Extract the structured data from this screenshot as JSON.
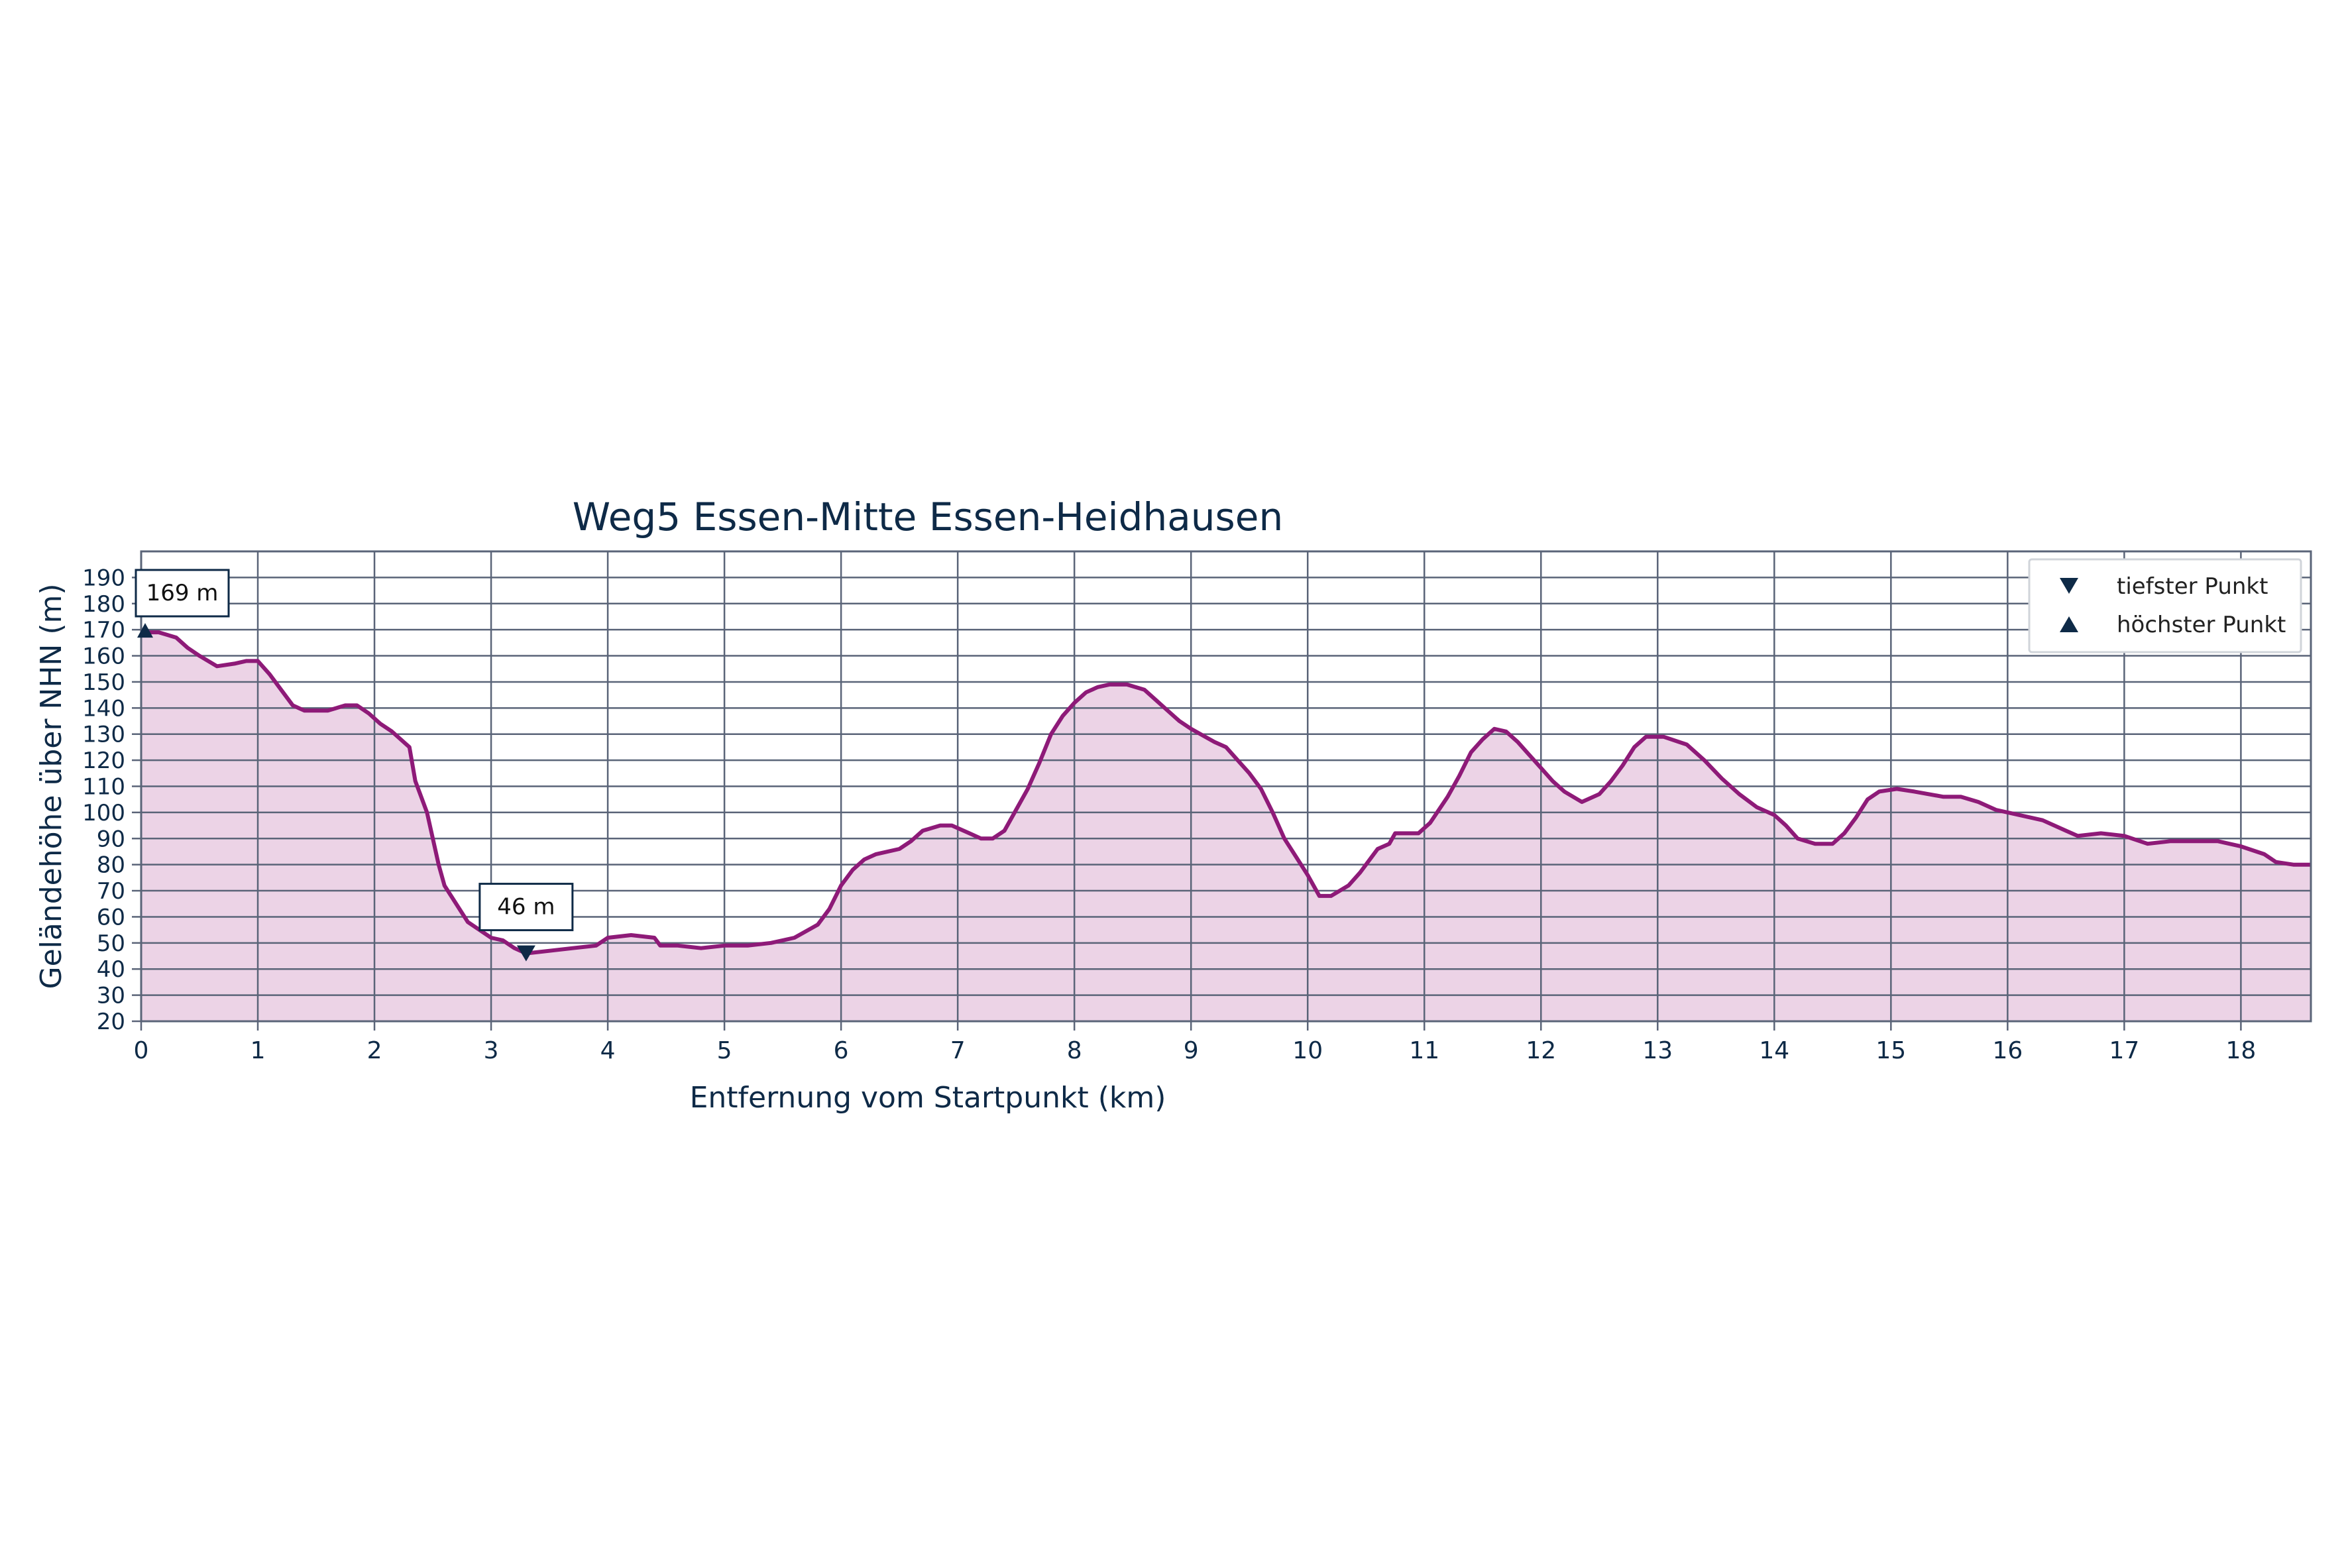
{
  "colors": {
    "line": "#8e1a78",
    "fill": "#ecd3e6",
    "grid": "#5a6478",
    "text": "#0e2a47",
    "marker": "#0e2a47",
    "background": "#ffffff"
  },
  "chart_data": {
    "type": "area",
    "title": "Weg5 Essen-Mitte Essen-Heidhausen",
    "xlabel": "Entfernung vom Startpunkt (km)",
    "ylabel": "Geländehöhe über NHN (m)",
    "xlim": [
      0,
      18.6
    ],
    "ylim": [
      20,
      200
    ],
    "x_ticks": [
      0,
      1,
      2,
      3,
      4,
      5,
      6,
      7,
      8,
      9,
      10,
      11,
      12,
      13,
      14,
      15,
      16,
      17,
      18
    ],
    "y_ticks": [
      20,
      30,
      40,
      50,
      60,
      70,
      80,
      90,
      100,
      110,
      120,
      130,
      140,
      150,
      160,
      170,
      180,
      190
    ],
    "grid": true,
    "legend_position": "top-right",
    "legend": [
      {
        "symbol": "down-triangle",
        "label": "tiefster Punkt"
      },
      {
        "symbol": "up-triangle",
        "label": "höchster Punkt"
      }
    ],
    "annotations": [
      {
        "label": "169 m",
        "x": 0.0,
        "y": 169,
        "type": "max"
      },
      {
        "label": "46 m",
        "x": 3.3,
        "y": 46,
        "type": "min"
      }
    ],
    "series": [
      {
        "points": [
          [
            0.0,
            169
          ],
          [
            0.15,
            169
          ],
          [
            0.3,
            167
          ],
          [
            0.4,
            163
          ],
          [
            0.5,
            160
          ],
          [
            0.65,
            156
          ],
          [
            0.8,
            157
          ],
          [
            0.9,
            158
          ],
          [
            1.0,
            158
          ],
          [
            1.1,
            153
          ],
          [
            1.2,
            147
          ],
          [
            1.3,
            141
          ],
          [
            1.4,
            139
          ],
          [
            1.6,
            139
          ],
          [
            1.75,
            141
          ],
          [
            1.85,
            141
          ],
          [
            1.95,
            138
          ],
          [
            2.05,
            134
          ],
          [
            2.15,
            131
          ],
          [
            2.3,
            125
          ],
          [
            2.35,
            112
          ],
          [
            2.45,
            100
          ],
          [
            2.5,
            90
          ],
          [
            2.55,
            80
          ],
          [
            2.6,
            72
          ],
          [
            2.7,
            65
          ],
          [
            2.8,
            58
          ],
          [
            2.9,
            55
          ],
          [
            3.0,
            52
          ],
          [
            3.1,
            51
          ],
          [
            3.2,
            48
          ],
          [
            3.3,
            46
          ],
          [
            3.5,
            47
          ],
          [
            3.7,
            48
          ],
          [
            3.9,
            49
          ],
          [
            4.0,
            52
          ],
          [
            4.2,
            53
          ],
          [
            4.4,
            52
          ],
          [
            4.45,
            49
          ],
          [
            4.6,
            49
          ],
          [
            4.8,
            48
          ],
          [
            5.0,
            49
          ],
          [
            5.2,
            49
          ],
          [
            5.4,
            50
          ],
          [
            5.6,
            52
          ],
          [
            5.8,
            57
          ],
          [
            5.9,
            63
          ],
          [
            6.0,
            72
          ],
          [
            6.1,
            78
          ],
          [
            6.2,
            82
          ],
          [
            6.3,
            84
          ],
          [
            6.5,
            86
          ],
          [
            6.6,
            89
          ],
          [
            6.7,
            93
          ],
          [
            6.85,
            95
          ],
          [
            6.95,
            95
          ],
          [
            7.1,
            92
          ],
          [
            7.2,
            90
          ],
          [
            7.3,
            90
          ],
          [
            7.4,
            93
          ],
          [
            7.5,
            101
          ],
          [
            7.6,
            109
          ],
          [
            7.7,
            119
          ],
          [
            7.8,
            130
          ],
          [
            7.9,
            137
          ],
          [
            8.0,
            142
          ],
          [
            8.1,
            146
          ],
          [
            8.2,
            148
          ],
          [
            8.3,
            149
          ],
          [
            8.45,
            149
          ],
          [
            8.6,
            147
          ],
          [
            8.7,
            143
          ],
          [
            8.8,
            139
          ],
          [
            8.9,
            135
          ],
          [
            9.0,
            132
          ],
          [
            9.2,
            127
          ],
          [
            9.3,
            125
          ],
          [
            9.4,
            120
          ],
          [
            9.5,
            115
          ],
          [
            9.6,
            109
          ],
          [
            9.7,
            100
          ],
          [
            9.8,
            90
          ],
          [
            9.9,
            83
          ],
          [
            10.0,
            76
          ],
          [
            10.1,
            68
          ],
          [
            10.2,
            68
          ],
          [
            10.35,
            72
          ],
          [
            10.45,
            77
          ],
          [
            10.55,
            83
          ],
          [
            10.6,
            86
          ],
          [
            10.7,
            88
          ],
          [
            10.75,
            92
          ],
          [
            10.85,
            92
          ],
          [
            10.95,
            92
          ],
          [
            11.05,
            96
          ],
          [
            11.2,
            106
          ],
          [
            11.3,
            114
          ],
          [
            11.4,
            123
          ],
          [
            11.5,
            128
          ],
          [
            11.6,
            132
          ],
          [
            11.7,
            131
          ],
          [
            11.8,
            127
          ],
          [
            11.9,
            122
          ],
          [
            12.0,
            117
          ],
          [
            12.1,
            112
          ],
          [
            12.2,
            108
          ],
          [
            12.35,
            104
          ],
          [
            12.5,
            107
          ],
          [
            12.6,
            112
          ],
          [
            12.7,
            118
          ],
          [
            12.8,
            125
          ],
          [
            12.9,
            129
          ],
          [
            13.05,
            129
          ],
          [
            13.25,
            126
          ],
          [
            13.4,
            120
          ],
          [
            13.55,
            113
          ],
          [
            13.7,
            107
          ],
          [
            13.85,
            102
          ],
          [
            14.0,
            99
          ],
          [
            14.1,
            95
          ],
          [
            14.2,
            90
          ],
          [
            14.35,
            88
          ],
          [
            14.5,
            88
          ],
          [
            14.6,
            92
          ],
          [
            14.7,
            98
          ],
          [
            14.8,
            105
          ],
          [
            14.9,
            108
          ],
          [
            15.05,
            109
          ],
          [
            15.2,
            108
          ],
          [
            15.45,
            106
          ],
          [
            15.6,
            106
          ],
          [
            15.75,
            104
          ],
          [
            15.9,
            101
          ],
          [
            16.1,
            99
          ],
          [
            16.3,
            97
          ],
          [
            16.5,
            93
          ],
          [
            16.6,
            91
          ],
          [
            16.8,
            92
          ],
          [
            17.0,
            91
          ],
          [
            17.2,
            88
          ],
          [
            17.4,
            89
          ],
          [
            17.6,
            89
          ],
          [
            17.8,
            89
          ],
          [
            18.0,
            87
          ],
          [
            18.2,
            84
          ],
          [
            18.3,
            81
          ],
          [
            18.45,
            80
          ],
          [
            18.6,
            80
          ]
        ]
      }
    ]
  }
}
